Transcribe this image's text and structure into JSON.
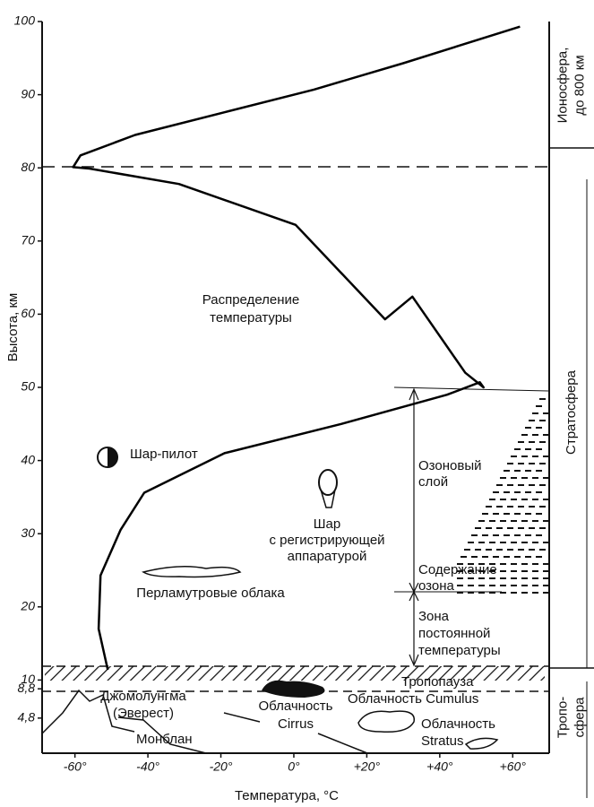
{
  "chart_data": {
    "type": "line",
    "x_label": "Температура, °С",
    "y_label": "Высота, км",
    "color": "#000000",
    "x": [
      -51,
      -53.5,
      -53,
      -47.5,
      -41,
      -19,
      13,
      42,
      51,
      52,
      47,
      32.5,
      25,
      0.5,
      -31.5,
      -56,
      -60.5,
      -58.5,
      -43.5,
      -19,
      5.5,
      30,
      62
    ],
    "values": [
      11.4,
      17,
      24.3,
      30.5,
      35.6,
      41,
      45,
      49,
      50.7,
      50,
      52,
      62.4,
      59.3,
      72.2,
      77.8,
      79.9,
      80.1,
      81.7,
      84.5,
      87.6,
      90.7,
      94.3,
      99.3
    ],
    "xlim": [
      -69,
      70
    ],
    "ylim": [
      0,
      100
    ],
    "xticks": [
      {
        "value": -60,
        "label": "-60°"
      },
      {
        "value": -40,
        "label": "-40°"
      },
      {
        "value": -20,
        "label": "-20°"
      },
      {
        "value": 0,
        "label": "0°"
      },
      {
        "value": 20,
        "label": "+20°"
      },
      {
        "value": 40,
        "label": "+40°"
      },
      {
        "value": 60,
        "label": "+60°"
      }
    ],
    "yticks": [
      {
        "value": 4.8,
        "label": "4,8"
      },
      {
        "value": 8.8,
        "label": "8,8"
      },
      10,
      20,
      30,
      40,
      50,
      60,
      70,
      80,
      90,
      100
    ],
    "annotations": [
      {
        "lines": [
          "Распределение",
          "температуры"
        ]
      },
      {
        "lines": [
          "Шар-пилот"
        ]
      },
      {
        "lines": [
          "Шар",
          "с регистрирующей",
          "аппаратурой"
        ]
      },
      {
        "lines": [
          "Перламутровые облака"
        ]
      },
      {
        "lines": [
          "Озоновый",
          "слой"
        ]
      },
      {
        "lines": [
          "Содержание",
          "озона"
        ]
      },
      {
        "lines": [
          "Зона",
          "постоянной",
          "температуры"
        ]
      },
      {
        "lines": [
          "Тропопауза"
        ]
      },
      {
        "lines": [
          "Джомолунгма",
          "(Эверест)"
        ]
      },
      {
        "lines": [
          "Монблан"
        ]
      },
      {
        "lines": [
          "Облачность",
          "Cirrus"
        ]
      },
      {
        "lines": [
          "Облачность Cumulus"
        ]
      },
      {
        "lines": [
          "Облачность",
          "Stratus"
        ]
      }
    ],
    "layers": [
      {
        "lines": [
          "Ионосфера,",
          "до 800 км"
        ]
      },
      {
        "lines": [
          "Стратосфера"
        ]
      },
      {
        "lines": [
          "Тропо-",
          "сфера"
        ]
      }
    ]
  }
}
